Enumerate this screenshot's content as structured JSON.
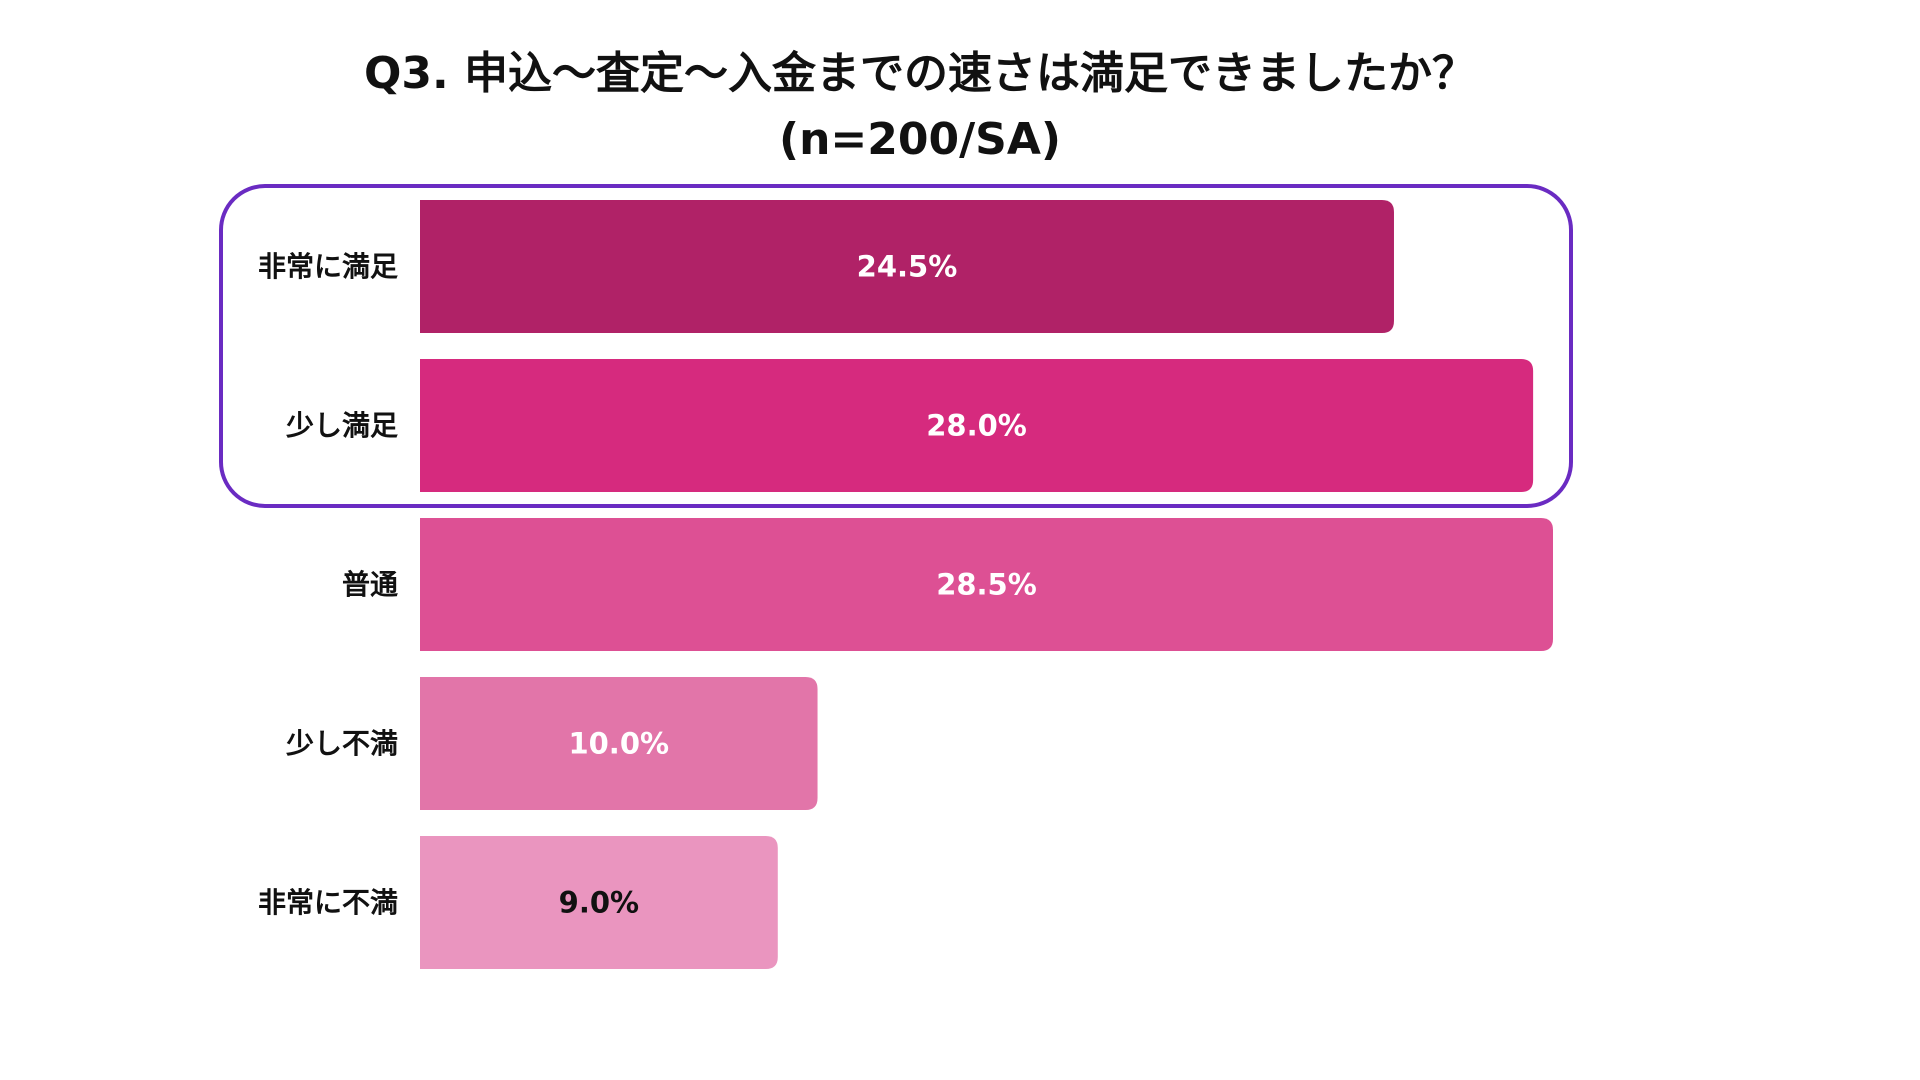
{
  "chart_data": {
    "type": "bar",
    "orientation": "horizontal",
    "title": "Q3. 申込〜査定〜入金までの速さは満足できましたか？",
    "subtitle": "(n=200/SA)",
    "categories": [
      "非常に満足",
      "少し満足",
      "普通",
      "少し不満",
      "非常に不満"
    ],
    "values": [
      24.5,
      28.0,
      28.5,
      10.0,
      9.0
    ],
    "value_labels": [
      "24.5%",
      "28.0%",
      "28.5%",
      "10.0%",
      "9.0%"
    ],
    "bar_colors": [
      "#b02267",
      "#d62a7e",
      "#dd5094",
      "#e275a9",
      "#ea95bf"
    ],
    "value_label_colors": [
      "#ffffff",
      "#ffffff",
      "#ffffff",
      "#ffffff",
      "#111111"
    ],
    "xlim": [
      0,
      28.5
    ],
    "highlight": {
      "categories": [
        "非常に満足",
        "少し満足"
      ],
      "color": "#6a2bc2"
    }
  }
}
